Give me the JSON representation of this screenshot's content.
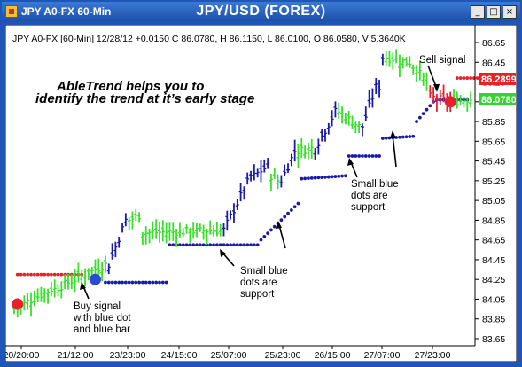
{
  "window": {
    "small_title": "JPY A0-FX 60-Min",
    "main_title": "JPY/USD (FOREX)",
    "buttons": {
      "minimize": "_",
      "maximize": "□",
      "close": "×"
    }
  },
  "header_info": "JPY A0-FX [60-Min] 12/28/12 +0.0150 C 86.0780, H 86.1150, L 86.0100, O 86.0580, V 5.3640K",
  "annotations": {
    "headline_line1": "AbleTrend helps you to",
    "headline_line2": "identify the trend at it’s early stage",
    "sell_signal": "Sell signal",
    "buy_signal_lines": [
      "Buy signal",
      "with blue dot",
      "and blue bar"
    ],
    "support_left_lines": [
      "Small blue",
      "dots are",
      "support"
    ],
    "support_right_lines": [
      "Small blue",
      "dots are",
      "support"
    ]
  },
  "price_badges": {
    "sell_level": {
      "value": "86.2899",
      "color": "#e8202a"
    },
    "last_price": {
      "value": "86.0780",
      "color": "#36d52e"
    }
  },
  "colors": {
    "bull_bar": "#3adf2c",
    "bear_bar": "#1a1aa8",
    "sell_bar": "#e8202a",
    "support_dot": "#1a1aa8",
    "resistance_dot": "#e8202a",
    "buy_signal": "#2a4bd8",
    "sell_signal": "#e8202a"
  },
  "chart_data": {
    "type": "ohlc",
    "title": "JPY/USD (FOREX)",
    "y_ticks": [
      "86.65",
      "86.45",
      "86.25",
      "86.05",
      "85.85",
      "85.65",
      "85.45",
      "85.25",
      "85.05",
      "84.85",
      "84.65",
      "84.45",
      "84.25",
      "84.05",
      "83.85",
      "83.65"
    ],
    "ylim": [
      83.65,
      86.75
    ],
    "x_ticks": [
      "20/20:00",
      "21/12:00",
      "23/23:00",
      "24/15:00",
      "25/07:00",
      "25/23:00",
      "26/15:00",
      "27/07:00",
      "27/23:00"
    ],
    "last_close": 86.078,
    "sell_signal_level": 86.2899,
    "grid": false,
    "segments": [
      {
        "bars": 12,
        "from": 83.95,
        "to": 84.15,
        "color": "bull"
      },
      {
        "bars": 16,
        "from": 84.15,
        "to": 84.4,
        "color": "bull"
      },
      {
        "bars": 6,
        "from": 84.4,
        "to": 84.85,
        "color": "bear"
      },
      {
        "bars": 4,
        "from": 84.85,
        "to": 84.9,
        "color": "bull"
      },
      {
        "bars": 24,
        "from": 84.72,
        "to": 84.75,
        "color": "bull"
      },
      {
        "bars": 9,
        "from": 84.75,
        "to": 85.3,
        "color": "bear"
      },
      {
        "bars": 5,
        "from": 85.3,
        "to": 85.4,
        "color": "bear"
      },
      {
        "bars": 3,
        "from": 85.3,
        "to": 85.25,
        "color": "bull"
      },
      {
        "bars": 5,
        "from": 85.25,
        "to": 85.55,
        "color": "bear"
      },
      {
        "bars": 5,
        "from": 85.55,
        "to": 85.58,
        "color": "bull"
      },
      {
        "bars": 7,
        "from": 85.58,
        "to": 85.95,
        "color": "bear"
      },
      {
        "bars": 7,
        "from": 85.95,
        "to": 85.8,
        "color": "bull"
      },
      {
        "bars": 5,
        "from": 85.8,
        "to": 86.2,
        "color": "bear"
      },
      {
        "bars": 2,
        "from": 86.2,
        "to": 86.5,
        "color": "bear"
      },
      {
        "bars": 7,
        "from": 86.5,
        "to": 86.45,
        "color": "bull"
      },
      {
        "bars": 6,
        "from": 86.45,
        "to": 86.25,
        "color": "bull"
      },
      {
        "bars": 7,
        "from": 86.1,
        "to": 86.05,
        "color": "sell"
      },
      {
        "bars": 6,
        "from": 86.05,
        "to": 86.08,
        "color": "bull"
      }
    ],
    "support_dots": [
      {
        "from_bar": 27,
        "to_bar": 45,
        "from": 84.22,
        "to": 84.22
      },
      {
        "from_bar": 46,
        "to_bar": 72,
        "from": 84.6,
        "to": 84.6
      },
      {
        "from_bar": 73,
        "to_bar": 84,
        "from": 84.65,
        "to": 85.02
      },
      {
        "from_bar": 85,
        "to_bar": 98,
        "from": 85.27,
        "to": 85.3
      },
      {
        "from_bar": 99,
        "to_bar": 108,
        "from": 85.5,
        "to": 85.5
      },
      {
        "from_bar": 109,
        "to_bar": 118,
        "from": 85.68,
        "to": 85.7
      },
      {
        "from_bar": 119,
        "to_bar": 124,
        "from": 85.85,
        "to": 86.05
      },
      {
        "from_bar": 125,
        "to_bar": 134,
        "from": 86.07,
        "to": 86.07
      }
    ],
    "resistance_dots": [
      {
        "from_bar": 1,
        "to_bar": 20,
        "from": 84.3,
        "to": 84.3
      },
      {
        "from_bar": 131,
        "to_bar": 141,
        "from": 86.29,
        "to": 86.29
      }
    ],
    "buy_signal": {
      "bar": 1,
      "price": 84.0
    },
    "buy_signal_2": {
      "bar": 24,
      "price": 84.25
    },
    "sell_signal": {
      "bar": 129,
      "price": 86.05
    }
  }
}
